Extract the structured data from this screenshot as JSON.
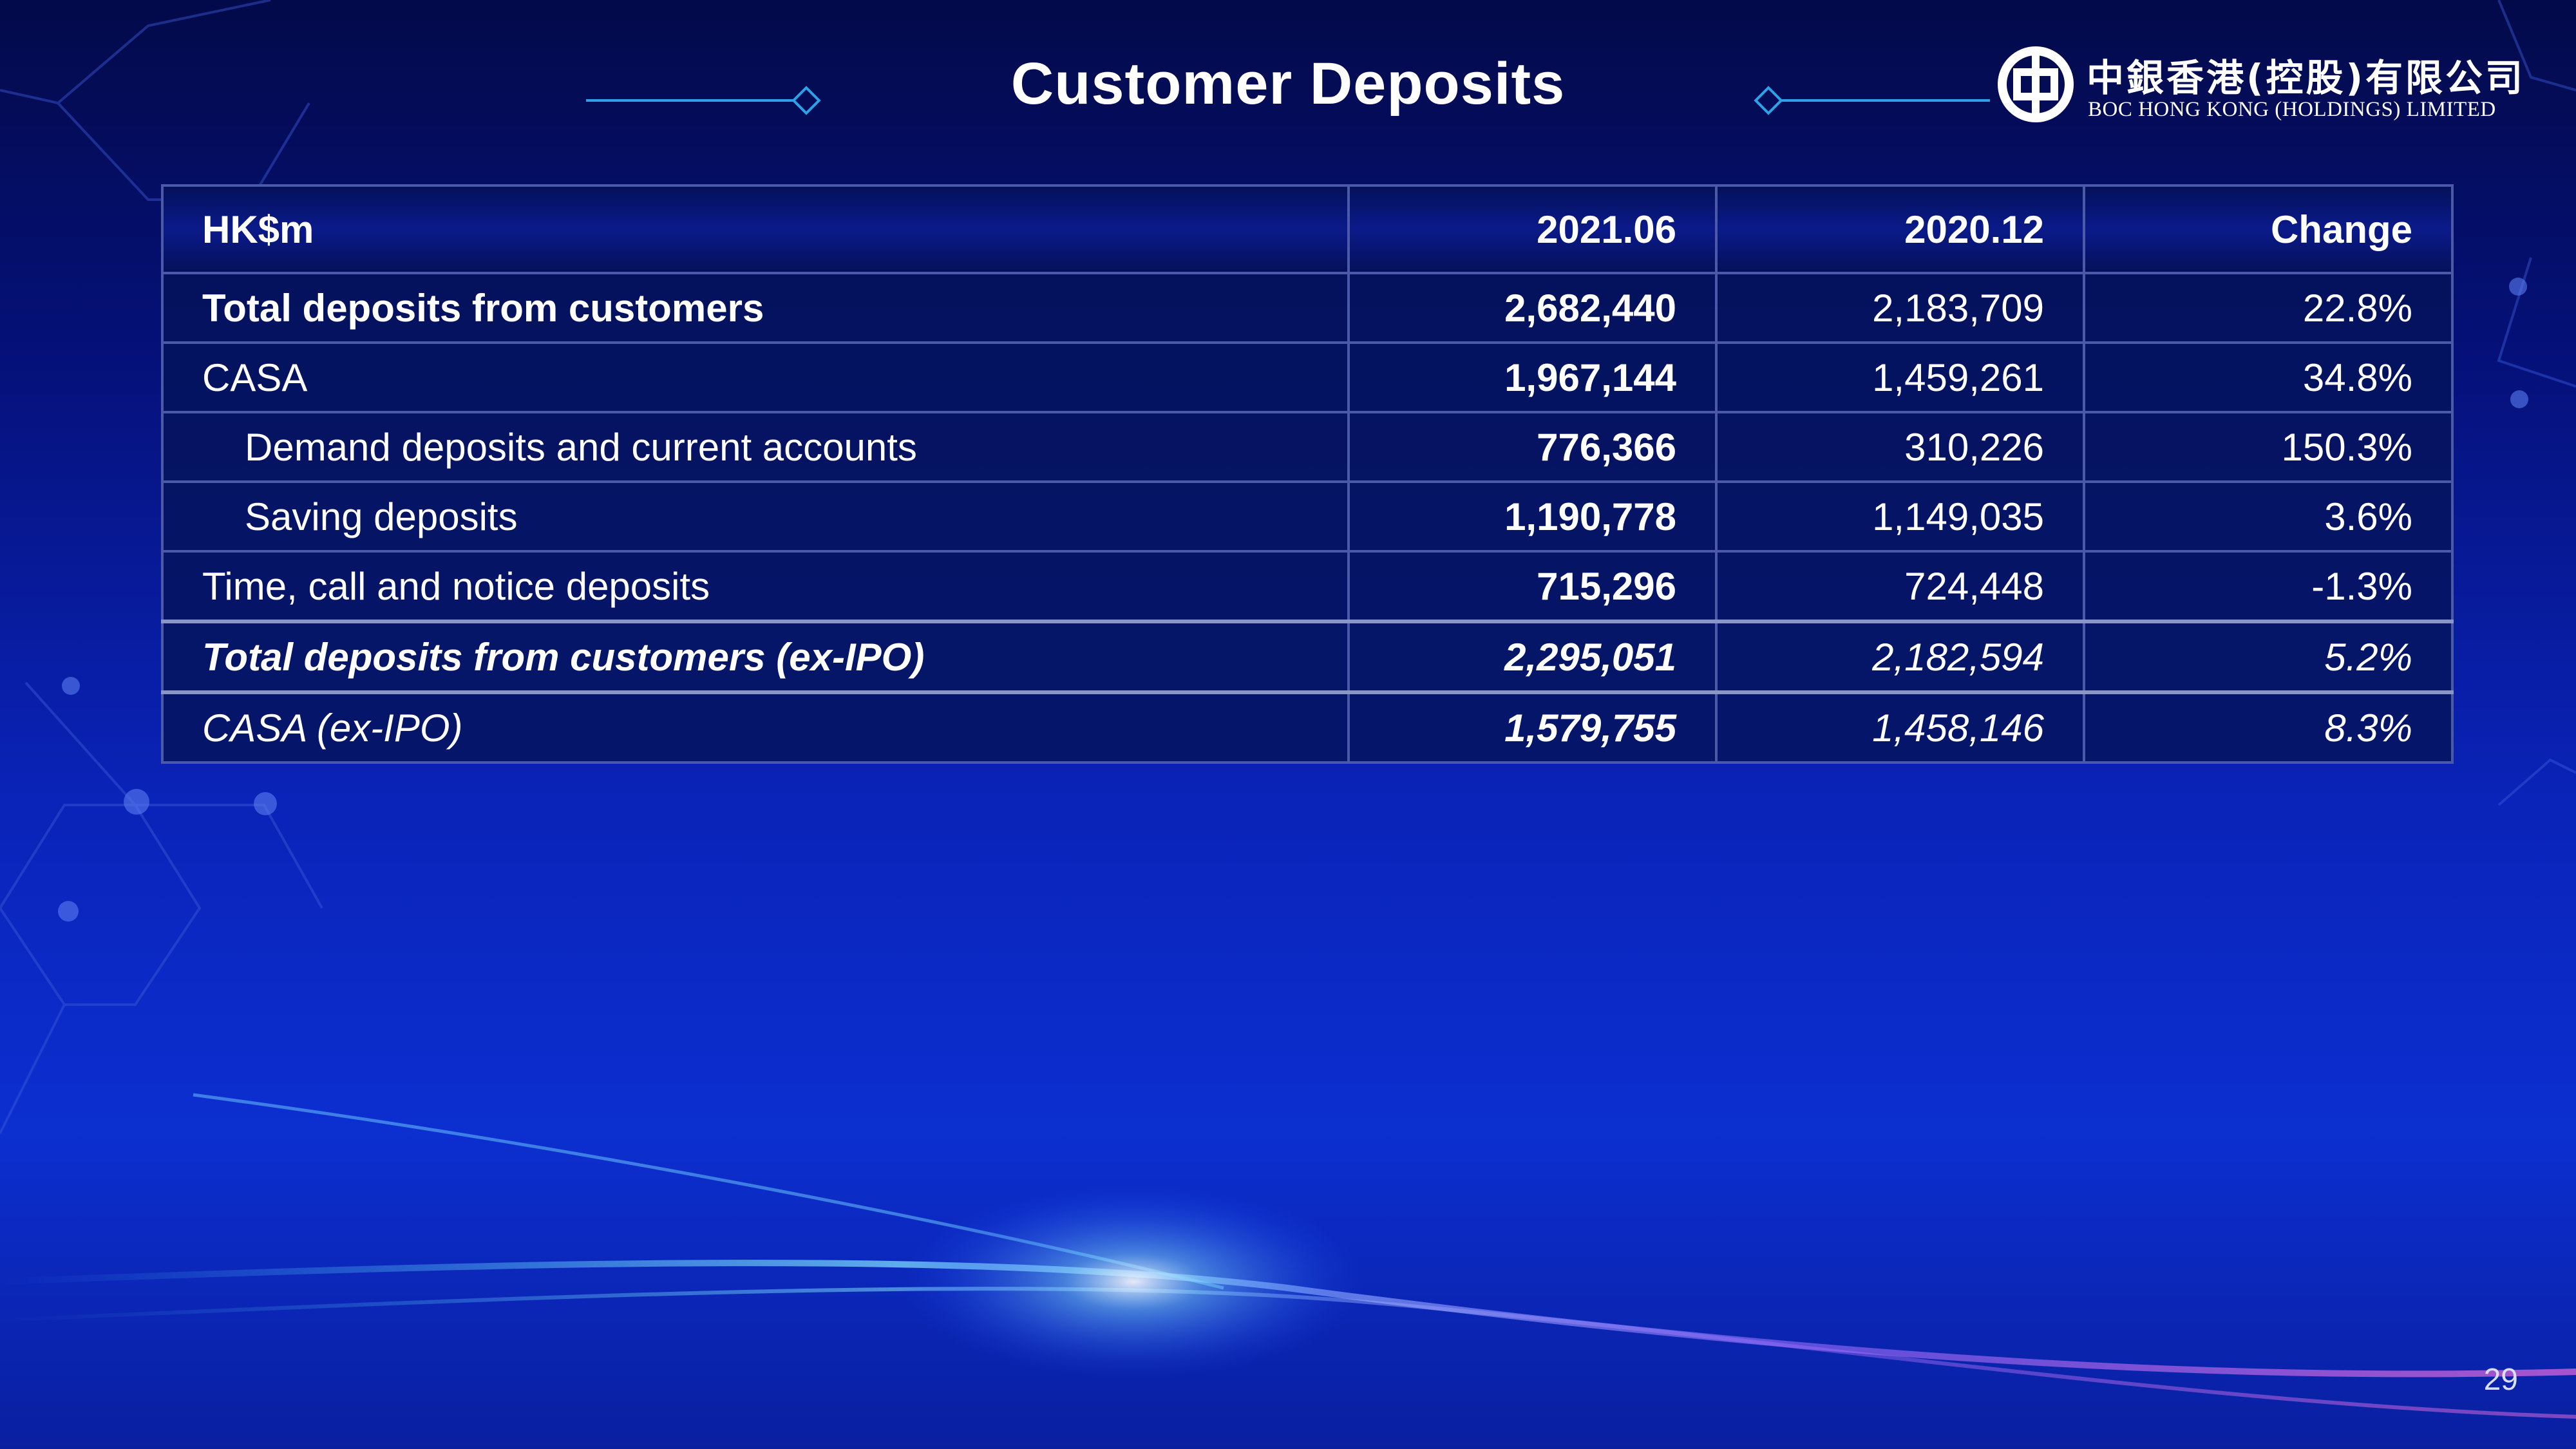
{
  "slide": {
    "title": "Customer Deposits",
    "page_number": "29"
  },
  "logo": {
    "name_zh": "中銀香港(控股)有限公司",
    "name_en": "BOC HONG KONG (HOLDINGS) LIMITED"
  },
  "table": {
    "headers": [
      "HK$m",
      "2021.06",
      "2020.12",
      "Change"
    ],
    "rows": [
      {
        "label": "Total deposits from customers",
        "v2021": "2,682,440",
        "v2020": "2,183,709",
        "change": "22.8%"
      },
      {
        "label": "CASA",
        "v2021": "1,967,144",
        "v2020": "1,459,261",
        "change": "34.8%"
      },
      {
        "label": "Demand deposits and current accounts",
        "v2021": "776,366",
        "v2020": "310,226",
        "change": "150.3%"
      },
      {
        "label": "Saving deposits",
        "v2021": "1,190,778",
        "v2020": "1,149,035",
        "change": "3.6%"
      },
      {
        "label": "Time, call and notice deposits",
        "v2021": "715,296",
        "v2020": "724,448",
        "change": "-1.3%"
      },
      {
        "label": "Total deposits from customers (ex-IPO)",
        "v2021": "2,295,051",
        "v2020": "2,182,594",
        "change": "5.2%"
      },
      {
        "label": "CASA (ex-IPO)",
        "v2021": "1,579,755",
        "v2020": "1,458,146",
        "change": "8.3%"
      }
    ]
  },
  "colors": {
    "background_top": "#030a4a",
    "background_bottom": "#0c2fd0",
    "table_border": "#4a5aa8",
    "text": "#ffffff"
  }
}
